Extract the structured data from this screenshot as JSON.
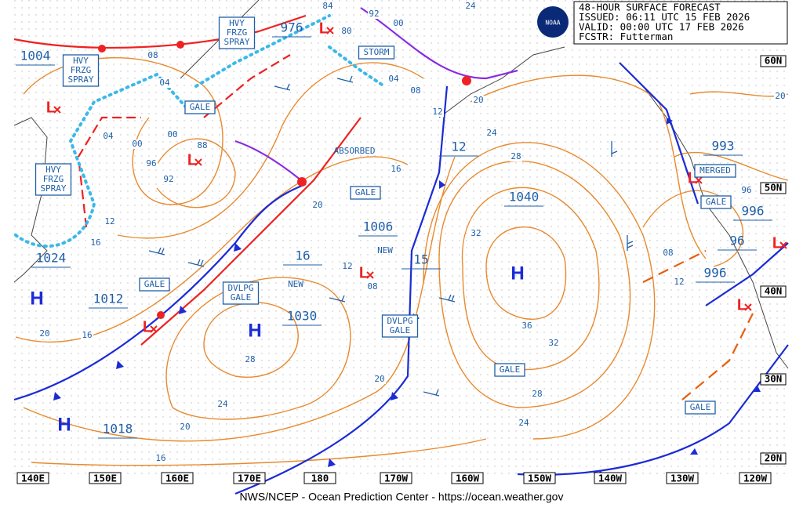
{
  "header": {
    "lines": [
      "48-HOUR SURFACE FORECAST",
      "ISSUED: 06:11 UTC 15 FEB 2026",
      "VALID:  00:00 UTC 17 FEB 2026",
      "FCSTR:  Futterman"
    ],
    "logo": "NOAA"
  },
  "footer": "NWS/NCEP - Ocean Prediction Center - https://ocean.weather.gov",
  "longitudes": [
    "140E",
    "150E",
    "160E",
    "170E",
    "180",
    "170W",
    "160W",
    "150W",
    "140W",
    "130W",
    "120W"
  ],
  "latitudes": [
    "60N",
    "50N",
    "40N",
    "30N",
    "20N"
  ],
  "centers": [
    "H",
    "H",
    "H",
    "H",
    "L",
    "L",
    "L",
    "L",
    "L",
    "L",
    "L",
    "L"
  ],
  "pressures": [
    "1004",
    "976",
    "1024",
    "1012",
    "1018",
    "1030",
    "1006",
    "1040",
    "993",
    "996",
    "96",
    "996",
    "16",
    "15",
    "12"
  ],
  "boxes": [
    [
      "HVY",
      "FRZG",
      "SPRAY"
    ],
    [
      "HVY",
      "FRZG",
      "SPRAY"
    ],
    [
      "HVY",
      "FRZG",
      "SPRAY"
    ],
    [
      "GALE"
    ],
    [
      "GALE"
    ],
    [
      "GALE"
    ],
    [
      "GALE"
    ],
    [
      "GALE"
    ],
    [
      "GALE"
    ],
    [
      "STORM"
    ],
    [
      "DVLPG",
      "GALE"
    ],
    [
      "DVLPG",
      "GALE"
    ],
    [
      "MERGED"
    ]
  ],
  "notes": [
    "ABSORBED",
    "NEW",
    "NEW"
  ],
  "contour_labels": [
    "08",
    "04",
    "00",
    "96",
    "92",
    "88",
    "84",
    "80",
    "92",
    "00",
    "04",
    "08",
    "12",
    "16",
    "20",
    "12",
    "16",
    "20",
    "16",
    "24",
    "28",
    "20",
    "16",
    "20",
    "24",
    "28",
    "32",
    "36",
    "32",
    "28",
    "24",
    "20",
    "24",
    "12",
    "08",
    "12",
    "08",
    "20",
    "96",
    "04",
    "00"
  ]
}
